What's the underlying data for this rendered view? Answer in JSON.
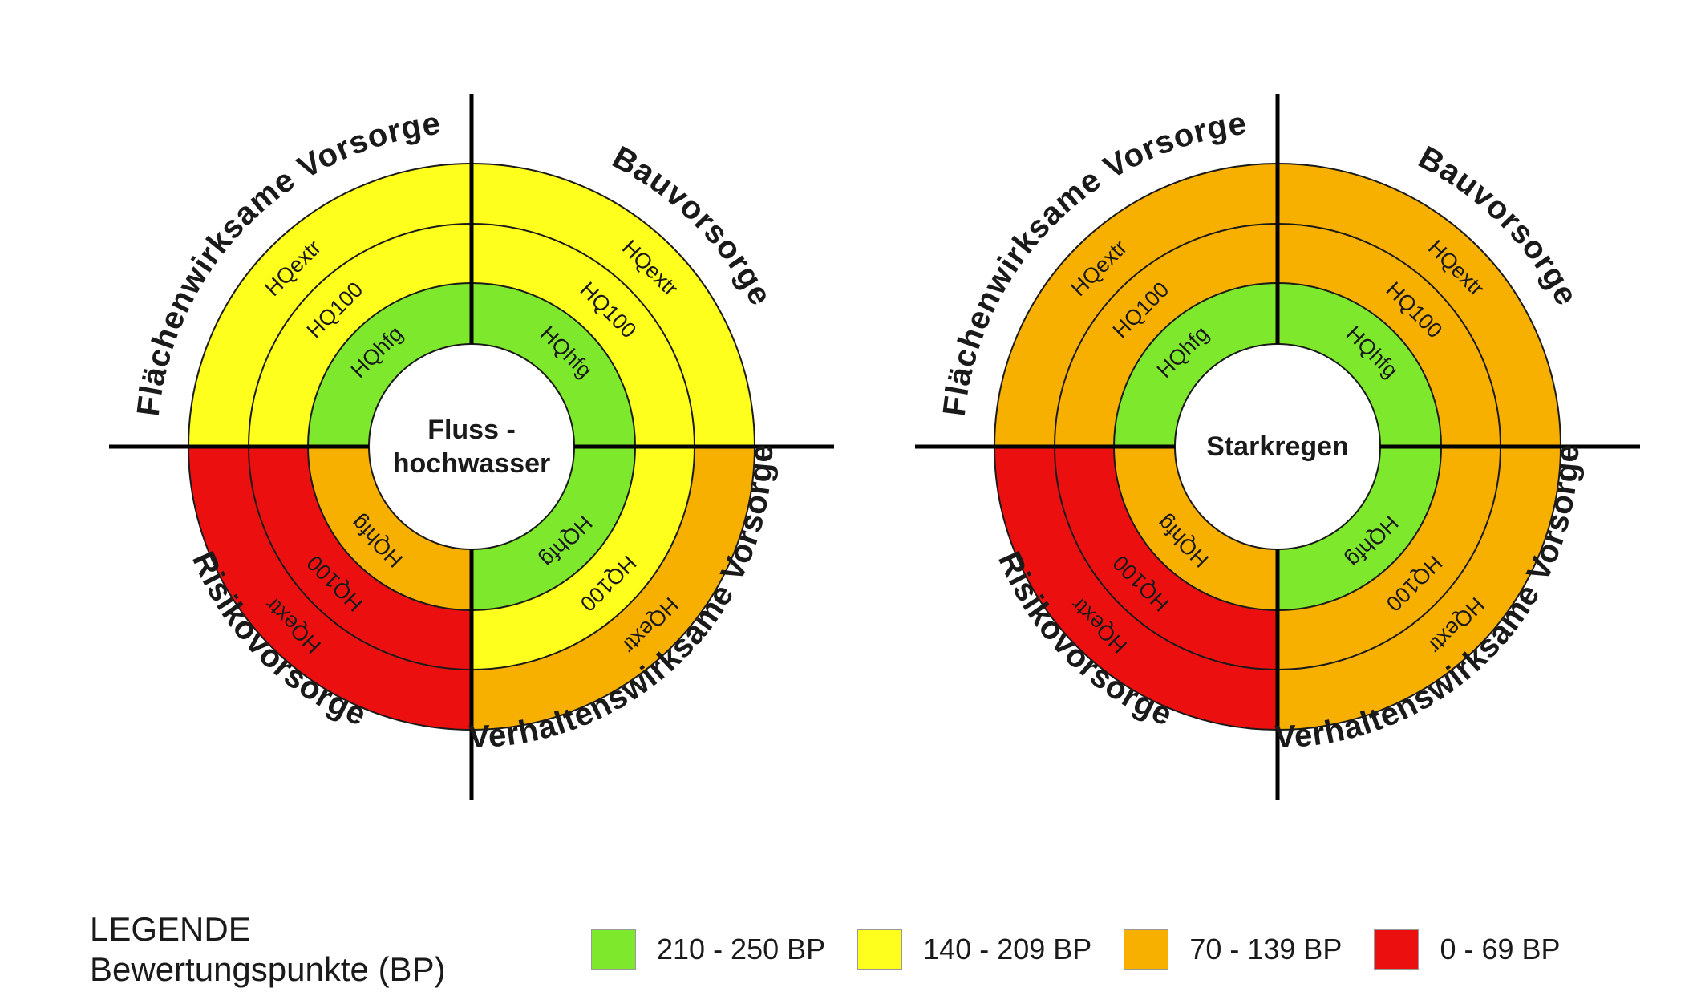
{
  "legend": {
    "title": "LEGENDE",
    "subtitle": "Bewertungspunkte (BP)",
    "items": [
      {
        "label": "210 - 250 BP",
        "color": "#7ee82c"
      },
      {
        "label": "140 - 209 BP",
        "color": "#ffff1e"
      },
      {
        "label": "70 - 139 BP",
        "color": "#f8b000"
      },
      {
        "label": "0 - 69 BP",
        "color": "#ec0f0f"
      }
    ]
  },
  "colors": {
    "green": "#7ee82c",
    "yellow": "#ffff1e",
    "orange": "#f8b000",
    "red": "#ec0f0f"
  },
  "quadrant_labels": {
    "top_left": "Flächenwirksame Vorsorge",
    "top_right": "Bauvorsorge",
    "bottom_left": "Risikovorsorge",
    "bottom_right": "Verhaltenswirksame Vorsorge"
  },
  "ring_labels": [
    "HQhfg",
    "HQ100",
    "HQextr"
  ],
  "diagrams": [
    {
      "center_label": [
        "Fluss -",
        "hochwasser"
      ],
      "quadrants": {
        "top_left": {
          "HQhfg": "green",
          "HQ100": "yellow",
          "HQextr": "yellow"
        },
        "top_right": {
          "HQhfg": "green",
          "HQ100": "yellow",
          "HQextr": "yellow"
        },
        "bottom_left": {
          "HQhfg": "orange",
          "HQ100": "red",
          "HQextr": "red"
        },
        "bottom_right": {
          "HQhfg": "green",
          "HQ100": "yellow",
          "HQextr": "orange"
        }
      }
    },
    {
      "center_label": [
        "Starkregen"
      ],
      "quadrants": {
        "top_left": {
          "HQhfg": "green",
          "HQ100": "orange",
          "HQextr": "orange"
        },
        "top_right": {
          "HQhfg": "green",
          "HQ100": "orange",
          "HQextr": "orange"
        },
        "bottom_left": {
          "HQhfg": "orange",
          "HQ100": "red",
          "HQextr": "red"
        },
        "bottom_right": {
          "HQhfg": "green",
          "HQ100": "orange",
          "HQextr": "orange"
        }
      }
    }
  ]
}
